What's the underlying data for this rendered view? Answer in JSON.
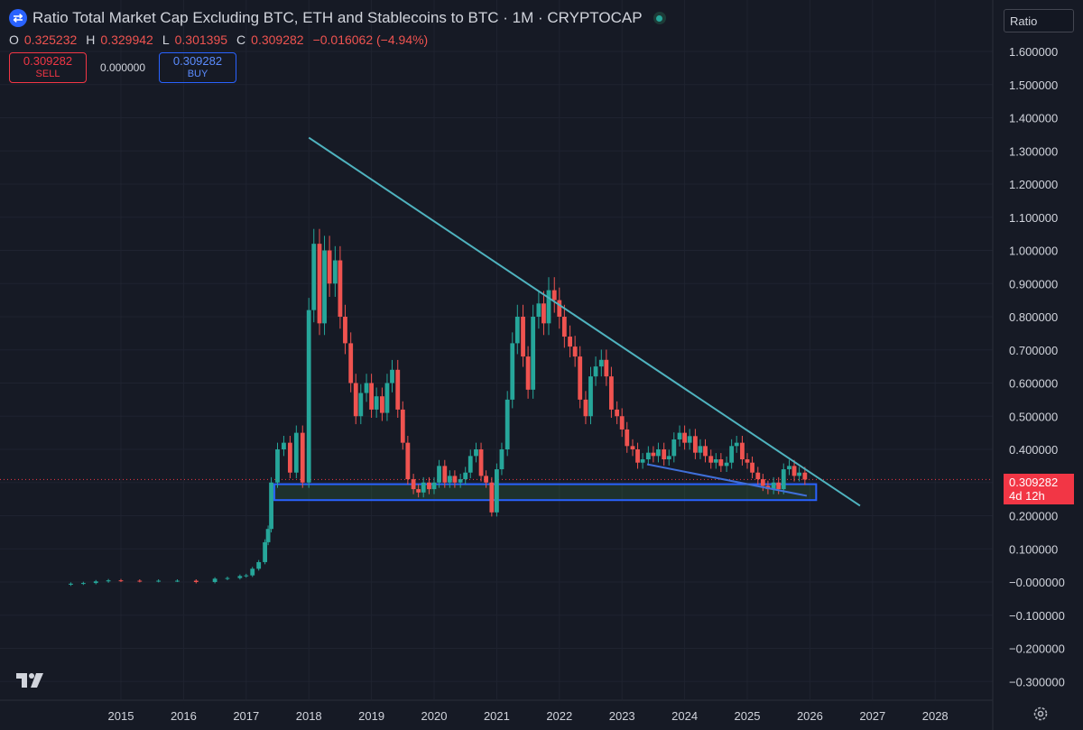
{
  "header": {
    "title": "Ratio Total Market Cap Excluding BTC, ETH and Stablecoins to BTC · 1M · CRYPTOCAP",
    "logo_icon": "exchange-logo-icon",
    "ohlc": {
      "o_label": "O",
      "o": "0.325232",
      "h_label": "H",
      "h": "0.329942",
      "l_label": "L",
      "l": "0.301395",
      "c_label": "C",
      "c": "0.309282",
      "change": "−0.016062 (−4.94%)"
    },
    "sell": {
      "price": "0.309282",
      "label": "SELL"
    },
    "spread": "0.000000",
    "buy": {
      "price": "0.309282",
      "label": "BUY"
    }
  },
  "scale_mode": "Ratio",
  "last_price": {
    "value": "0.309282",
    "countdown": "4d 12h"
  },
  "colors": {
    "background": "#161a25",
    "up": "#26a69a",
    "down": "#ef5350",
    "trendline": "#4fb3bf",
    "support_zone": "#2962ff"
  },
  "chart_data": {
    "type": "candlestick",
    "title": "Ratio Total Market Cap Excluding BTC, ETH and Stablecoins to BTC · 1M · CRYPTOCAP",
    "ylim": [
      -0.3,
      1.6
    ],
    "y_ticks": [
      "1.600000",
      "1.500000",
      "1.400000",
      "1.300000",
      "1.200000",
      "1.100000",
      "1.000000",
      "0.900000",
      "0.800000",
      "0.700000",
      "0.600000",
      "0.500000",
      "0.400000",
      "0.300000",
      "0.200000",
      "0.100000",
      "−0.000000",
      "−0.100000",
      "−0.200000",
      "−0.300000"
    ],
    "y_tick_values": [
      1.6,
      1.5,
      1.4,
      1.3,
      1.2,
      1.1,
      1.0,
      0.9,
      0.8,
      0.7,
      0.6,
      0.5,
      0.4,
      0.3,
      0.2,
      0.1,
      0.0,
      -0.1,
      -0.2,
      -0.3
    ],
    "x_ticks": [
      "2015",
      "2016",
      "2017",
      "2018",
      "2019",
      "2020",
      "2021",
      "2022",
      "2023",
      "2024",
      "2025",
      "2026",
      "2027",
      "2028"
    ],
    "x_tick_values": [
      2015,
      2016,
      2017,
      2018,
      2019,
      2020,
      2021,
      2022,
      2023,
      2024,
      2025,
      2026,
      2027,
      2028
    ],
    "xlim": [
      2013.4,
      2028.9
    ],
    "candles_close": [
      [
        2014.2,
        -0.005
      ],
      [
        2014.4,
        -0.003
      ],
      [
        2014.6,
        0.002
      ],
      [
        2014.8,
        0.005
      ],
      [
        2015.0,
        0.004
      ],
      [
        2015.3,
        0.003
      ],
      [
        2015.6,
        0.004
      ],
      [
        2015.9,
        0.004
      ],
      [
        2016.2,
        0.0
      ],
      [
        2016.5,
        0.01
      ],
      [
        2016.7,
        0.012
      ],
      [
        2016.9,
        0.018
      ],
      [
        2017.0,
        0.02
      ],
      [
        2017.1,
        0.04
      ],
      [
        2017.2,
        0.06
      ],
      [
        2017.3,
        0.12
      ],
      [
        2017.35,
        0.16
      ],
      [
        2017.4,
        0.3
      ],
      [
        2017.5,
        0.4
      ],
      [
        2017.6,
        0.42
      ],
      [
        2017.7,
        0.33
      ],
      [
        2017.8,
        0.45
      ],
      [
        2017.9,
        0.3
      ],
      [
        2018.0,
        0.82
      ],
      [
        2018.08,
        1.02
      ],
      [
        2018.17,
        0.78
      ],
      [
        2018.25,
        1.0
      ],
      [
        2018.33,
        0.9
      ],
      [
        2018.42,
        0.97
      ],
      [
        2018.5,
        0.8
      ],
      [
        2018.58,
        0.72
      ],
      [
        2018.67,
        0.6
      ],
      [
        2018.75,
        0.5
      ],
      [
        2018.83,
        0.57
      ],
      [
        2018.92,
        0.6
      ],
      [
        2019.0,
        0.52
      ],
      [
        2019.08,
        0.56
      ],
      [
        2019.17,
        0.51
      ],
      [
        2019.25,
        0.6
      ],
      [
        2019.33,
        0.64
      ],
      [
        2019.42,
        0.52
      ],
      [
        2019.5,
        0.42
      ],
      [
        2019.58,
        0.31
      ],
      [
        2019.67,
        0.28
      ],
      [
        2019.75,
        0.27
      ],
      [
        2019.83,
        0.3
      ],
      [
        2019.92,
        0.28
      ],
      [
        2020.0,
        0.3
      ],
      [
        2020.08,
        0.35
      ],
      [
        2020.17,
        0.3
      ],
      [
        2020.25,
        0.32
      ],
      [
        2020.33,
        0.3
      ],
      [
        2020.42,
        0.31
      ],
      [
        2020.5,
        0.33
      ],
      [
        2020.58,
        0.38
      ],
      [
        2020.67,
        0.4
      ],
      [
        2020.75,
        0.32
      ],
      [
        2020.83,
        0.3
      ],
      [
        2020.92,
        0.21
      ],
      [
        2021.0,
        0.34
      ],
      [
        2021.08,
        0.4
      ],
      [
        2021.17,
        0.55
      ],
      [
        2021.25,
        0.72
      ],
      [
        2021.33,
        0.8
      ],
      [
        2021.42,
        0.68
      ],
      [
        2021.5,
        0.58
      ],
      [
        2021.58,
        0.8
      ],
      [
        2021.67,
        0.84
      ],
      [
        2021.75,
        0.78
      ],
      [
        2021.83,
        0.88
      ],
      [
        2021.92,
        0.85
      ],
      [
        2022.0,
        0.8
      ],
      [
        2022.08,
        0.74
      ],
      [
        2022.17,
        0.71
      ],
      [
        2022.25,
        0.68
      ],
      [
        2022.33,
        0.55
      ],
      [
        2022.42,
        0.5
      ],
      [
        2022.5,
        0.62
      ],
      [
        2022.58,
        0.65
      ],
      [
        2022.67,
        0.67
      ],
      [
        2022.75,
        0.62
      ],
      [
        2022.83,
        0.52
      ],
      [
        2022.92,
        0.5
      ],
      [
        2023.0,
        0.46
      ],
      [
        2023.08,
        0.41
      ],
      [
        2023.17,
        0.4
      ],
      [
        2023.25,
        0.36
      ],
      [
        2023.33,
        0.37
      ],
      [
        2023.42,
        0.39
      ],
      [
        2023.5,
        0.38
      ],
      [
        2023.58,
        0.4
      ],
      [
        2023.67,
        0.37
      ],
      [
        2023.75,
        0.38
      ],
      [
        2023.83,
        0.43
      ],
      [
        2023.92,
        0.45
      ],
      [
        2024.0,
        0.42
      ],
      [
        2024.08,
        0.44
      ],
      [
        2024.17,
        0.39
      ],
      [
        2024.25,
        0.41
      ],
      [
        2024.33,
        0.38
      ],
      [
        2024.42,
        0.36
      ],
      [
        2024.5,
        0.37
      ],
      [
        2024.58,
        0.35
      ],
      [
        2024.67,
        0.36
      ],
      [
        2024.75,
        0.41
      ],
      [
        2024.83,
        0.42
      ],
      [
        2024.92,
        0.37
      ],
      [
        2025.0,
        0.36
      ],
      [
        2025.08,
        0.33
      ],
      [
        2025.17,
        0.31
      ],
      [
        2025.25,
        0.29
      ],
      [
        2025.33,
        0.28
      ],
      [
        2025.42,
        0.3
      ],
      [
        2025.5,
        0.28
      ],
      [
        2025.58,
        0.34
      ],
      [
        2025.67,
        0.35
      ],
      [
        2025.75,
        0.32
      ],
      [
        2025.83,
        0.33
      ],
      [
        2025.92,
        0.309
      ]
    ],
    "annotations": {
      "descending_trendline": [
        [
          2018.0,
          1.34
        ],
        [
          2026.8,
          0.23
        ]
      ],
      "support_zone": {
        "x": [
          2017.45,
          2026.1
        ],
        "y": [
          0.247,
          0.295
        ]
      },
      "inner_trendline": [
        [
          2023.4,
          0.355
        ],
        [
          2025.95,
          0.26
        ]
      ]
    }
  }
}
